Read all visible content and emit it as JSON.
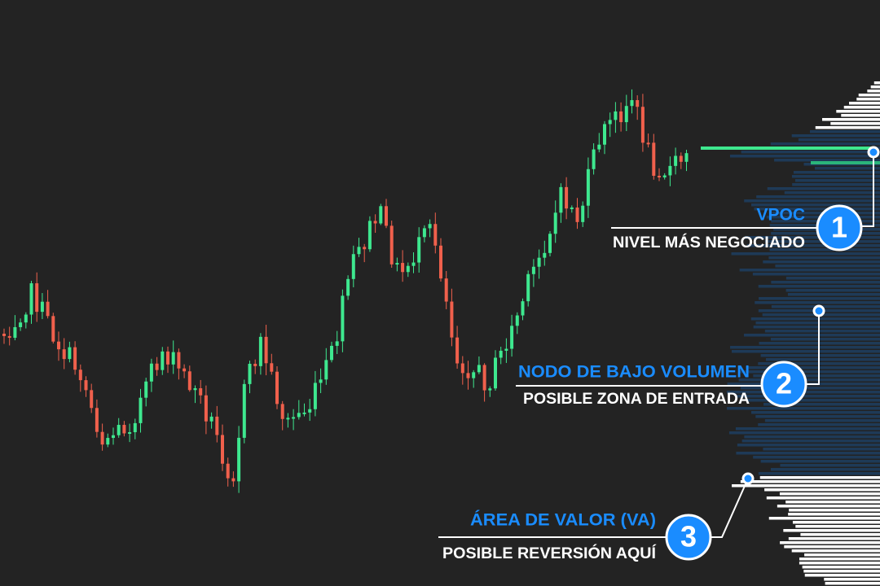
{
  "annotations": [
    {
      "number": "1",
      "title": "VPOC",
      "subtitle": "NIVEL MÁS NEGOCIADO"
    },
    {
      "number": "2",
      "title": "NODO DE BAJO VOLUMEN",
      "subtitle": "POSIBLE ZONA DE ENTRADA"
    },
    {
      "number": "3",
      "title": "ÁREA DE VALOR (VA)",
      "subtitle": "POSIBLE REVERSIÓN AQUÍ"
    }
  ]
}
